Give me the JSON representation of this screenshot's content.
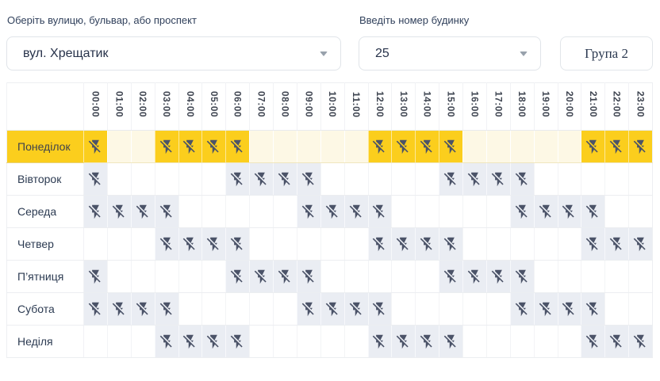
{
  "controls": {
    "street_label": "Оберіть вулицю, бульвар, або проспект",
    "street_value": "вул. Хрещатик",
    "house_label": "Введіть номер будинку",
    "house_value": "25",
    "group_button": "Група 2"
  },
  "colors": {
    "highlight_yellow": "#fbce1d",
    "highlight_pale": "#fdf8e5",
    "outage_cell_gray": "#eaedf3",
    "icon_color": "#4b5368",
    "text_dark": "#2c3b52"
  },
  "schedule": {
    "icon": "flash-off-icon",
    "hours": [
      "00:00",
      "01:00",
      "02:00",
      "03:00",
      "04:00",
      "05:00",
      "06:00",
      "07:00",
      "08:00",
      "09:00",
      "10:00",
      "11:00",
      "12:00",
      "13:00",
      "14:00",
      "15:00",
      "16:00",
      "17:00",
      "18:00",
      "19:00",
      "20:00",
      "21:00",
      "22:00",
      "23:00"
    ],
    "days": [
      {
        "label": "Понеділок",
        "highlight": true,
        "outage_hours": [
          0,
          3,
          4,
          5,
          6,
          12,
          13,
          14,
          15,
          21,
          22,
          23
        ]
      },
      {
        "label": "Вівторок",
        "highlight": false,
        "outage_hours": [
          0,
          6,
          7,
          8,
          9,
          15,
          16,
          17,
          18
        ]
      },
      {
        "label": "Середа",
        "highlight": false,
        "outage_hours": [
          0,
          1,
          2,
          3,
          9,
          10,
          11,
          12,
          18,
          19,
          20,
          21
        ]
      },
      {
        "label": "Четвер",
        "highlight": false,
        "outage_hours": [
          3,
          4,
          5,
          6,
          12,
          13,
          14,
          15,
          21,
          22,
          23
        ]
      },
      {
        "label": "П’ятниця",
        "highlight": false,
        "outage_hours": [
          0,
          6,
          7,
          8,
          9,
          15,
          16,
          17,
          18
        ]
      },
      {
        "label": "Субота",
        "highlight": false,
        "outage_hours": [
          0,
          1,
          2,
          3,
          9,
          10,
          11,
          12,
          18,
          19,
          20,
          21
        ]
      },
      {
        "label": "Неділя",
        "highlight": false,
        "outage_hours": [
          3,
          4,
          5,
          6,
          12,
          13,
          14,
          15,
          21,
          22,
          23
        ]
      }
    ]
  }
}
